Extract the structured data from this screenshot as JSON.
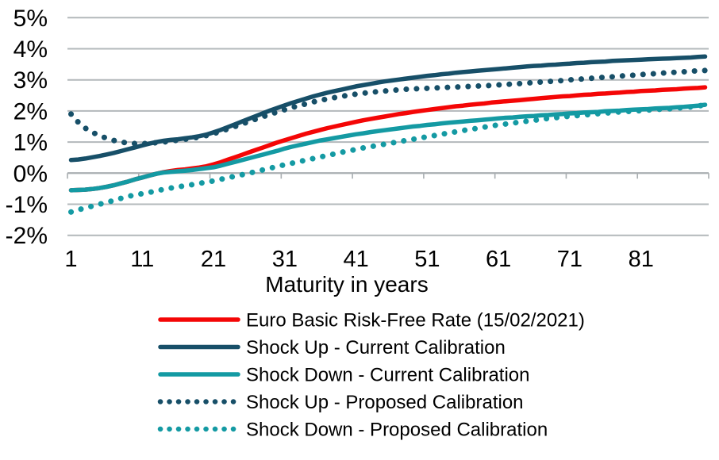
{
  "chart_data": {
    "type": "line",
    "title": "",
    "xlabel": "Maturity in years",
    "ylabel": "",
    "x_start": 1,
    "x_step": 1,
    "x_range": [
      1,
      90
    ],
    "x_ticks": [
      1,
      11,
      21,
      31,
      41,
      51,
      61,
      71,
      81
    ],
    "ylim": [
      -2,
      5
    ],
    "y_ticks_percent": [
      5,
      4,
      3,
      2,
      1,
      0,
      -1,
      -2
    ],
    "y_tick_suffix": "%",
    "grid": "horizontal",
    "legend_position": "bottom",
    "series": [
      {
        "name": "Euro Basic Risk-Free Rate (15/02/2021)",
        "color": "#f40606",
        "style": "solid",
        "values": [
          -0.55,
          -0.54,
          -0.53,
          -0.51,
          -0.48,
          -0.44,
          -0.39,
          -0.33,
          -0.27,
          -0.2,
          -0.14,
          -0.08,
          -0.02,
          0.03,
          0.07,
          0.1,
          0.12,
          0.15,
          0.18,
          0.22,
          0.28,
          0.35,
          0.43,
          0.51,
          0.59,
          0.67,
          0.75,
          0.83,
          0.91,
          0.99,
          1.06,
          1.13,
          1.2,
          1.27,
          1.33,
          1.39,
          1.45,
          1.5,
          1.55,
          1.6,
          1.65,
          1.7,
          1.74,
          1.78,
          1.82,
          1.86,
          1.9,
          1.93,
          1.97,
          2.0,
          2.03,
          2.06,
          2.09,
          2.12,
          2.15,
          2.17,
          2.2,
          2.22,
          2.24,
          2.27,
          2.29,
          2.31,
          2.33,
          2.35,
          2.37,
          2.39,
          2.41,
          2.43,
          2.45,
          2.47,
          2.48,
          2.5,
          2.52,
          2.53,
          2.55,
          2.56,
          2.58,
          2.59,
          2.61,
          2.62,
          2.64,
          2.65,
          2.66,
          2.68,
          2.69,
          2.7,
          2.72,
          2.73,
          2.74,
          2.76
        ]
      },
      {
        "name": "Shock Up - Current Calibration",
        "color": "#174f68",
        "style": "solid",
        "values": [
          0.42,
          0.44,
          0.47,
          0.51,
          0.55,
          0.6,
          0.65,
          0.71,
          0.77,
          0.83,
          0.89,
          0.95,
          1.0,
          1.04,
          1.07,
          1.09,
          1.12,
          1.15,
          1.19,
          1.24,
          1.31,
          1.39,
          1.48,
          1.57,
          1.66,
          1.75,
          1.84,
          1.93,
          2.02,
          2.1,
          2.18,
          2.26,
          2.33,
          2.4,
          2.47,
          2.53,
          2.59,
          2.64,
          2.69,
          2.74,
          2.79,
          2.83,
          2.87,
          2.91,
          2.95,
          2.98,
          3.01,
          3.04,
          3.07,
          3.1,
          3.13,
          3.15,
          3.18,
          3.2,
          3.23,
          3.25,
          3.27,
          3.29,
          3.31,
          3.33,
          3.35,
          3.37,
          3.39,
          3.41,
          3.43,
          3.45,
          3.46,
          3.48,
          3.49,
          3.51,
          3.52,
          3.54,
          3.55,
          3.57,
          3.58,
          3.59,
          3.61,
          3.62,
          3.63,
          3.64,
          3.65,
          3.66,
          3.67,
          3.68,
          3.69,
          3.7,
          3.71,
          3.72,
          3.74,
          3.75
        ]
      },
      {
        "name": "Shock Down - Current Calibration",
        "color": "#149aa3",
        "style": "solid",
        "values": [
          -0.55,
          -0.54,
          -0.53,
          -0.51,
          -0.48,
          -0.44,
          -0.39,
          -0.33,
          -0.27,
          -0.2,
          -0.14,
          -0.08,
          -0.02,
          0.02,
          0.04,
          0.06,
          0.08,
          0.1,
          0.13,
          0.16,
          0.19,
          0.24,
          0.3,
          0.36,
          0.42,
          0.48,
          0.54,
          0.6,
          0.66,
          0.72,
          0.79,
          0.85,
          0.9,
          0.95,
          1.0,
          1.05,
          1.09,
          1.13,
          1.17,
          1.21,
          1.25,
          1.28,
          1.32,
          1.35,
          1.38,
          1.41,
          1.44,
          1.47,
          1.5,
          1.52,
          1.55,
          1.57,
          1.6,
          1.62,
          1.64,
          1.66,
          1.68,
          1.7,
          1.72,
          1.74,
          1.76,
          1.78,
          1.79,
          1.81,
          1.83,
          1.84,
          1.86,
          1.87,
          1.89,
          1.9,
          1.92,
          1.93,
          1.95,
          1.96,
          1.97,
          1.99,
          2.0,
          2.01,
          2.03,
          2.04,
          2.05,
          2.06,
          2.08,
          2.09,
          2.1,
          2.12,
          2.13,
          2.15,
          2.17,
          2.2
        ]
      },
      {
        "name": "Shock Up - Proposed Calibration",
        "color": "#174f68",
        "style": "dotted",
        "values": [
          1.9,
          1.64,
          1.45,
          1.31,
          1.21,
          1.12,
          1.05,
          1.0,
          0.97,
          0.95,
          0.95,
          0.96,
          0.98,
          1.0,
          1.03,
          1.06,
          1.09,
          1.12,
          1.16,
          1.21,
          1.27,
          1.34,
          1.42,
          1.5,
          1.58,
          1.66,
          1.74,
          1.82,
          1.9,
          1.97,
          2.04,
          2.11,
          2.17,
          2.23,
          2.29,
          2.34,
          2.39,
          2.43,
          2.47,
          2.51,
          2.54,
          2.57,
          2.6,
          2.62,
          2.64,
          2.66,
          2.68,
          2.7,
          2.71,
          2.72,
          2.73,
          2.74,
          2.75,
          2.76,
          2.77,
          2.78,
          2.79,
          2.8,
          2.81,
          2.82,
          2.84,
          2.85,
          2.87,
          2.88,
          2.9,
          2.91,
          2.93,
          2.95,
          2.96,
          2.98,
          3.0,
          3.02,
          3.03,
          3.05,
          3.07,
          3.09,
          3.1,
          3.12,
          3.14,
          3.15,
          3.17,
          3.19,
          3.2,
          3.22,
          3.23,
          3.25,
          3.26,
          3.28,
          3.29,
          3.3
        ]
      },
      {
        "name": "Shock Down - Proposed Calibration",
        "color": "#149aa3",
        "style": "dotted",
        "values": [
          -1.25,
          -1.18,
          -1.12,
          -1.06,
          -1.0,
          -0.94,
          -0.88,
          -0.81,
          -0.75,
          -0.7,
          -0.66,
          -0.62,
          -0.57,
          -0.52,
          -0.48,
          -0.44,
          -0.41,
          -0.37,
          -0.33,
          -0.29,
          -0.25,
          -0.2,
          -0.15,
          -0.1,
          -0.05,
          0.0,
          0.05,
          0.11,
          0.16,
          0.22,
          0.27,
          0.32,
          0.37,
          0.42,
          0.47,
          0.52,
          0.57,
          0.62,
          0.67,
          0.72,
          0.76,
          0.81,
          0.85,
          0.89,
          0.93,
          0.97,
          1.01,
          1.05,
          1.09,
          1.13,
          1.17,
          1.21,
          1.25,
          1.29,
          1.33,
          1.37,
          1.41,
          1.44,
          1.48,
          1.52,
          1.55,
          1.58,
          1.61,
          1.64,
          1.67,
          1.7,
          1.73,
          1.76,
          1.78,
          1.81,
          1.83,
          1.85,
          1.87,
          1.89,
          1.91,
          1.93,
          1.95,
          1.97,
          1.98,
          2.0,
          2.01,
          2.03,
          2.04,
          2.06,
          2.07,
          2.09,
          2.11,
          2.13,
          2.16,
          2.19
        ]
      }
    ]
  },
  "colors": {
    "grid": "#b3b8bb",
    "axis": "#a9aeb1",
    "text": "#000000",
    "background": "#ffffff"
  }
}
